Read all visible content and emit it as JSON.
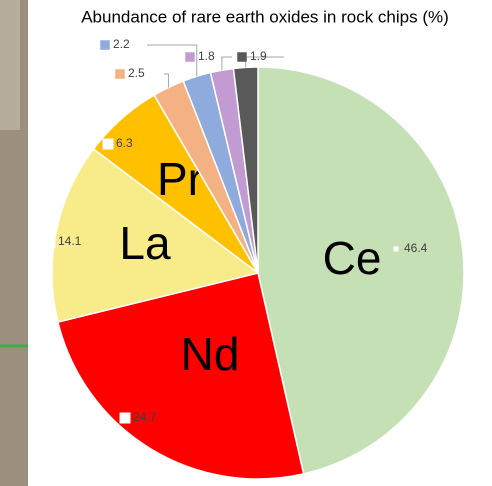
{
  "chart_data": {
    "type": "pie",
    "title": "Abundance of rare earth oxides in rock chips (%)",
    "categories": [
      "Ce",
      "Nd",
      "La",
      "Pr",
      null,
      null,
      null,
      null
    ],
    "values": [
      46.4,
      24.7,
      14.1,
      6.3,
      2.5,
      2.2,
      1.8,
      1.9
    ],
    "colors": [
      "#c5e0b4",
      "#ff0000",
      "#f7eb8a",
      "#ffc000",
      "#f4b183",
      "#8faadc",
      "#c39bd3",
      "#595959"
    ]
  }
}
